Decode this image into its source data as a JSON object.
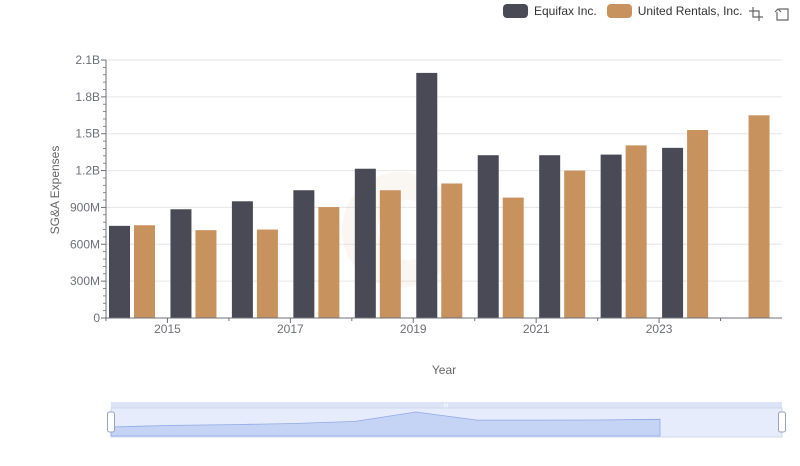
{
  "chart_data": {
    "type": "bar",
    "categories": [
      "2014",
      "2015",
      "2016",
      "2017",
      "2018",
      "2019",
      "2020",
      "2021",
      "2022",
      "2023",
      "2024"
    ],
    "series": [
      {
        "name": "Equifax Inc.",
        "color": "#4a4a56",
        "values": [
          750000000,
          885000000,
          950000000,
          1040000000,
          1215000000,
          1995000000,
          1325000000,
          1325000000,
          1330000000,
          1385000000,
          null
        ]
      },
      {
        "name": "United Rentals, Inc.",
        "color": "#c8925e",
        "values": [
          755000000,
          715000000,
          720000000,
          903000000,
          1040000000,
          1095000000,
          980000000,
          1200000000,
          1405000000,
          1530000000,
          1650000000
        ]
      }
    ],
    "x_tick_labels": [
      "2015",
      "2017",
      "2019",
      "2021",
      "2023"
    ],
    "y_tick_labels": [
      "0",
      "300M",
      "600M",
      "900M",
      "1.2B",
      "1.5B",
      "1.8B",
      "2.1B"
    ],
    "ylabel": "SG&A Expenses",
    "xlabel": "Year",
    "ylim": [
      0,
      2100000000
    ],
    "grid": true,
    "legend_position": "top-right"
  },
  "legend": {
    "item_0": "Equifax Inc.",
    "item_1": "United Rentals, Inc."
  },
  "toolbox": {
    "icons": [
      "zoom-icon",
      "restore-icon"
    ]
  },
  "datazoom": {
    "handle_label": "III"
  }
}
